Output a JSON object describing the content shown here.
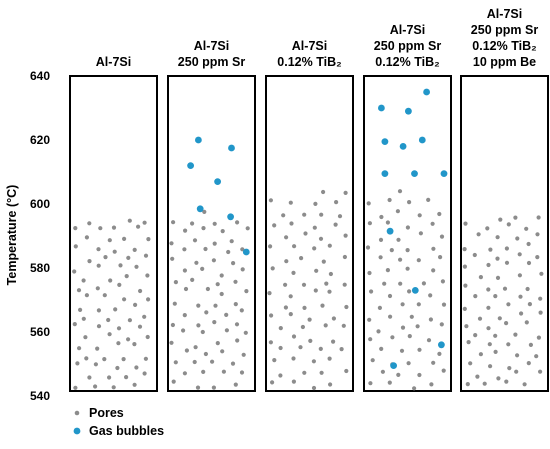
{
  "colors": {
    "pore": "#8c8c8c",
    "bubble": "#2196c9",
    "frame": "#000000"
  },
  "chart_data": {
    "type": "scatter",
    "ylabel": "Temperature (°C)",
    "ylim": [
      540,
      640
    ],
    "yticks": [
      {
        "value": 540,
        "label": "540"
      },
      {
        "value": 560,
        "label": "560"
      },
      {
        "value": 580,
        "label": "580"
      },
      {
        "value": 600,
        "label": "600"
      },
      {
        "value": 620,
        "label": "620"
      },
      {
        "value": 640,
        "label": "640"
      }
    ],
    "legend": {
      "placement": "bottom-left",
      "items": [
        {
          "key": "pore",
          "label": "Pores"
        },
        {
          "key": "bubble",
          "label": "Gas bubbles"
        }
      ]
    },
    "panels": [
      {
        "title_lines": [
          "Al-7Si"
        ],
        "pores_top": 595,
        "bubbles": []
      },
      {
        "title_lines": [
          "Al-7Si",
          "250 ppm Sr"
        ],
        "pores_top": 598,
        "bubbles": [
          {
            "x": 0.35,
            "y": 620
          },
          {
            "x": 0.73,
            "y": 617.5
          },
          {
            "x": 0.26,
            "y": 612
          },
          {
            "x": 0.57,
            "y": 607
          },
          {
            "x": 0.37,
            "y": 598.5
          },
          {
            "x": 0.72,
            "y": 596
          },
          {
            "x": 0.9,
            "y": 585
          }
        ]
      },
      {
        "title_lines": [
          "Al-7Si",
          "0.12% TiB₂"
        ],
        "pores_top": 604,
        "bubbles": []
      },
      {
        "title_lines": [
          "Al-7Si",
          "250 ppm Sr",
          "0.12% TiB₂"
        ],
        "pores_top": 604,
        "bubbles": [
          {
            "x": 0.72,
            "y": 635
          },
          {
            "x": 0.2,
            "y": 630
          },
          {
            "x": 0.51,
            "y": 629
          },
          {
            "x": 0.24,
            "y": 619.5
          },
          {
            "x": 0.67,
            "y": 620
          },
          {
            "x": 0.45,
            "y": 618
          },
          {
            "x": 0.24,
            "y": 609.5
          },
          {
            "x": 0.58,
            "y": 609.5
          },
          {
            "x": 0.92,
            "y": 609.5
          },
          {
            "x": 0.3,
            "y": 591.5
          },
          {
            "x": 0.59,
            "y": 573
          },
          {
            "x": 0.89,
            "y": 556
          },
          {
            "x": 0.34,
            "y": 549.5
          }
        ]
      },
      {
        "title_lines": [
          "Al-7Si",
          "250 ppm Sr",
          "0.12% TiB₂",
          "10 ppm Be"
        ],
        "pores_top": 596,
        "bubbles": []
      }
    ]
  }
}
